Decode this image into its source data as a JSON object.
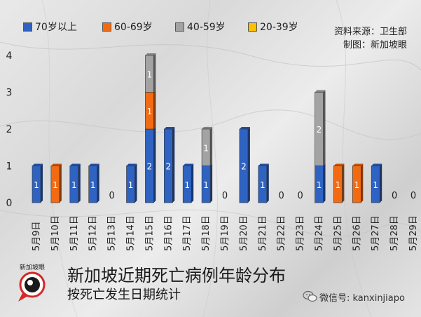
{
  "legend": [
    {
      "label": "70岁以上",
      "color": "#2f63c2"
    },
    {
      "label": "60-69岁",
      "color": "#f26b13"
    },
    {
      "label": "40-59岁",
      "color": "#a3a3a3"
    },
    {
      "label": "20-39岁",
      "color": "#ffc000"
    }
  ],
  "source": {
    "line1": "资料来源：卫生部",
    "line2": "制图：新加坡眼"
  },
  "title": "新加坡近期死亡病例年龄分布",
  "subtitle": "按死亡发生日期统计",
  "logo_text": "新加坡眼",
  "watermark": "微信号: kanxinjiapo",
  "chart_data": {
    "type": "bar",
    "stacked": true,
    "categories": [
      "5月9日",
      "5月10日",
      "5月11日",
      "5月12日",
      "5月13日",
      "5月14日",
      "5月15日",
      "5月16日",
      "5月17日",
      "5月18日",
      "5月19日",
      "5月20日",
      "5月21日",
      "5月22日",
      "5月23日",
      "5月24日",
      "5月25日",
      "5月26日",
      "5月27日",
      "5月28日",
      "5月29日"
    ],
    "series": [
      {
        "name": "70岁以上",
        "color": "#2f63c2",
        "values": [
          1,
          0,
          1,
          1,
          0,
          1,
          2,
          2,
          1,
          1,
          0,
          2,
          1,
          0,
          0,
          1,
          0,
          0,
          1,
          0,
          0
        ]
      },
      {
        "name": "60-69岁",
        "color": "#f26b13",
        "values": [
          0,
          1,
          0,
          0,
          0,
          0,
          1,
          0,
          0,
          0,
          0,
          0,
          0,
          0,
          0,
          0,
          1,
          1,
          0,
          0,
          0
        ]
      },
      {
        "name": "40-59岁",
        "color": "#a3a3a3",
        "values": [
          0,
          0,
          0,
          0,
          0,
          0,
          1,
          0,
          0,
          1,
          0,
          0,
          0,
          0,
          0,
          2,
          0,
          0,
          0,
          0,
          0
        ]
      },
      {
        "name": "20-39岁",
        "color": "#ffc000",
        "values": [
          0,
          0,
          0,
          0,
          0,
          0,
          0,
          0,
          0,
          0,
          0,
          0,
          0,
          0,
          0,
          0,
          0,
          0,
          0,
          0,
          0
        ]
      }
    ],
    "totals": [
      1,
      1,
      1,
      1,
      0,
      1,
      4,
      2,
      1,
      2,
      0,
      2,
      1,
      0,
      0,
      3,
      1,
      1,
      1,
      0,
      0
    ],
    "y_ticks": [
      "0",
      "1",
      "2",
      "3",
      "4"
    ],
    "ylim": [
      0,
      4
    ],
    "grid": false,
    "legend_position": "top-left"
  }
}
